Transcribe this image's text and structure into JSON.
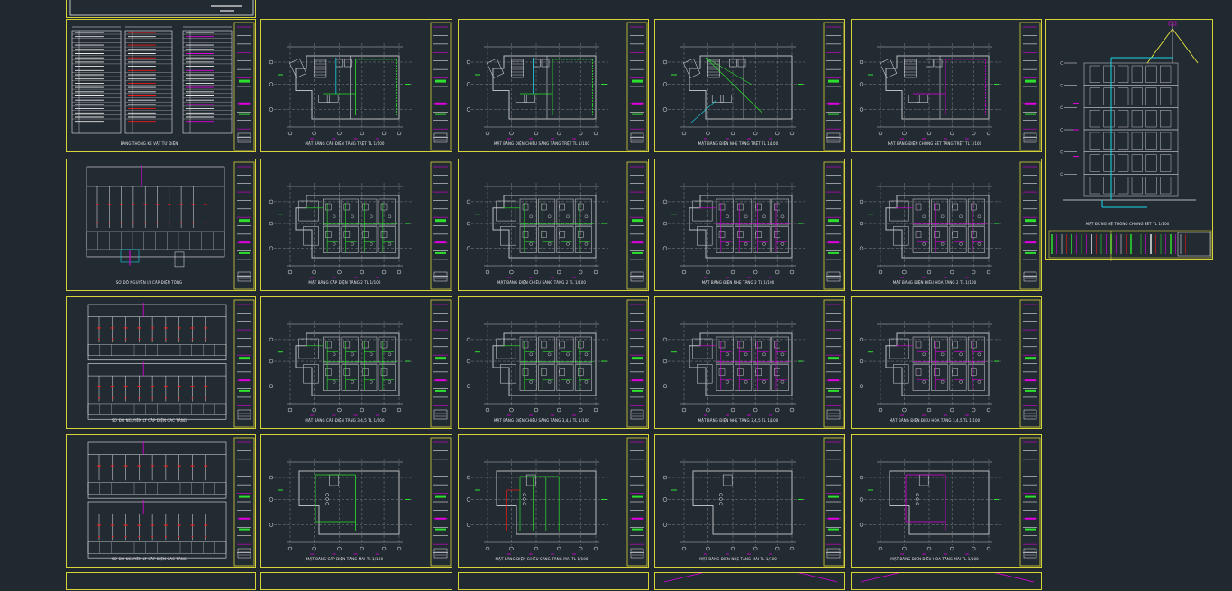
{
  "viewer": {
    "title": "",
    "background": "#212830",
    "frame_color": "#d7d43a"
  },
  "colors": {
    "wall": "#b9bcbf",
    "grid": "#9a9da0",
    "green": "#2ee02e",
    "magenta": "#e000e0",
    "cyan": "#18d6e6",
    "red": "#f01818",
    "white": "#e8e8e8"
  },
  "sheets": [
    {
      "id": "r0c0",
      "kind": "legend",
      "caption": "BẢNG THỐNG KÊ VẬT TƯ ĐIỆN"
    },
    {
      "id": "r0c1",
      "kind": "plan",
      "plan": "ground",
      "caption": "MẶT BẰNG CẤP ĐIỆN TẦNG TRỆT TL 1/100",
      "wires": "green"
    },
    {
      "id": "r0c2",
      "kind": "plan",
      "plan": "ground",
      "caption": "MẶT BẰNG ĐIỆN CHIẾU SÁNG TẦNG TRỆT TL 1/100",
      "wires": "green"
    },
    {
      "id": "r0c3",
      "kind": "plan",
      "plan": "ground",
      "caption": "MẶT BẰNG ĐIỆN NHẸ TẦNG TRỆT TL 1/100",
      "wires": "green-diag"
    },
    {
      "id": "r0c4",
      "kind": "plan",
      "plan": "ground",
      "caption": "MẶT BẰNG ĐIỆN CHỐNG SÉT TẦNG TRỆT TL 1/100",
      "wires": "magenta"
    },
    {
      "id": "r0c5",
      "kind": "elevation",
      "caption": "MẶT ĐỨNG HỆ THỐNG CHỐNG SÉT TL 1/100"
    },
    {
      "id": "r1c0",
      "kind": "riser",
      "caption": "SƠ ĐỒ NGUYÊN LÝ CẤP ĐIỆN TỔNG"
    },
    {
      "id": "r1c1",
      "kind": "plan",
      "plan": "typical",
      "caption": "MẶT BẰNG CẤP ĐIỆN TẦNG 2 TL 1/100",
      "wires": "green"
    },
    {
      "id": "r1c2",
      "kind": "plan",
      "plan": "typical",
      "caption": "MẶT BẰNG ĐIỆN CHIẾU SÁNG TẦNG 2 TL 1/100",
      "wires": "green"
    },
    {
      "id": "r1c3",
      "kind": "plan",
      "plan": "typical",
      "caption": "MẶT BẰNG ĐIỆN NHẸ TẦNG 2 TL 1/100",
      "wires": "magenta"
    },
    {
      "id": "r1c4",
      "kind": "plan",
      "plan": "typical",
      "caption": "MẶT BẰNG ĐIỆN ĐIỀU HÒA TẦNG 2 TL 1/100",
      "wires": "magenta"
    },
    {
      "id": "r2c0",
      "kind": "riser2",
      "caption": "SƠ ĐỒ NGUYÊN LÝ CẤP ĐIỆN CÁC TẦNG"
    },
    {
      "id": "r2c1",
      "kind": "plan",
      "plan": "typical",
      "caption": "MẶT BẰNG CẤP ĐIỆN TẦNG 3,4,5 TL 1/100",
      "wires": "green"
    },
    {
      "id": "r2c2",
      "kind": "plan",
      "plan": "typical",
      "caption": "MẶT BẰNG ĐIỆN CHIẾU SÁNG TẦNG 3,4,5 TL 1/100",
      "wires": "green"
    },
    {
      "id": "r2c3",
      "kind": "plan",
      "plan": "typical",
      "caption": "MẶT BẰNG ĐIỆN NHẸ TẦNG 3,4,5 TL 1/100",
      "wires": "magenta"
    },
    {
      "id": "r2c4",
      "kind": "plan",
      "plan": "typical",
      "caption": "MẶT BẰNG ĐIỆN ĐIỀU HÒA TẦNG 3,4,5 TL 1/100",
      "wires": "magenta"
    },
    {
      "id": "r3c0",
      "kind": "riser2",
      "caption": "SƠ ĐỒ NGUYÊN LÝ CẤP ĐIỆN CÁC TẦNG"
    },
    {
      "id": "r3c1",
      "kind": "plan",
      "plan": "roof",
      "caption": "MẶT BẰNG CẤP ĐIỆN TẦNG MÁI TL 1/100",
      "wires": "green"
    },
    {
      "id": "r3c2",
      "kind": "plan",
      "plan": "roof",
      "caption": "MẶT BẰNG ĐIỆN CHIẾU SÁNG TẦNG MÁI TL 1/100",
      "wires": "green-red"
    },
    {
      "id": "r3c3",
      "kind": "plan",
      "plan": "roof",
      "caption": "MẶT BẰNG ĐIỆN NHẸ TẦNG MÁI TL 1/100",
      "wires": "none"
    },
    {
      "id": "r3c4",
      "kind": "plan",
      "plan": "roof",
      "caption": "MẶT BẰNG ĐIỆN ĐIỀU HÒA TẦNG MÁI TL 1/100",
      "wires": "magenta"
    },
    {
      "id": "r4c0",
      "kind": "partial",
      "caption": ""
    },
    {
      "id": "r4c1",
      "kind": "partial",
      "caption": ""
    },
    {
      "id": "r4c2",
      "kind": "partial",
      "caption": ""
    },
    {
      "id": "r4c3",
      "kind": "partial",
      "caption": ""
    },
    {
      "id": "r4c4",
      "kind": "partial",
      "caption": ""
    }
  ]
}
